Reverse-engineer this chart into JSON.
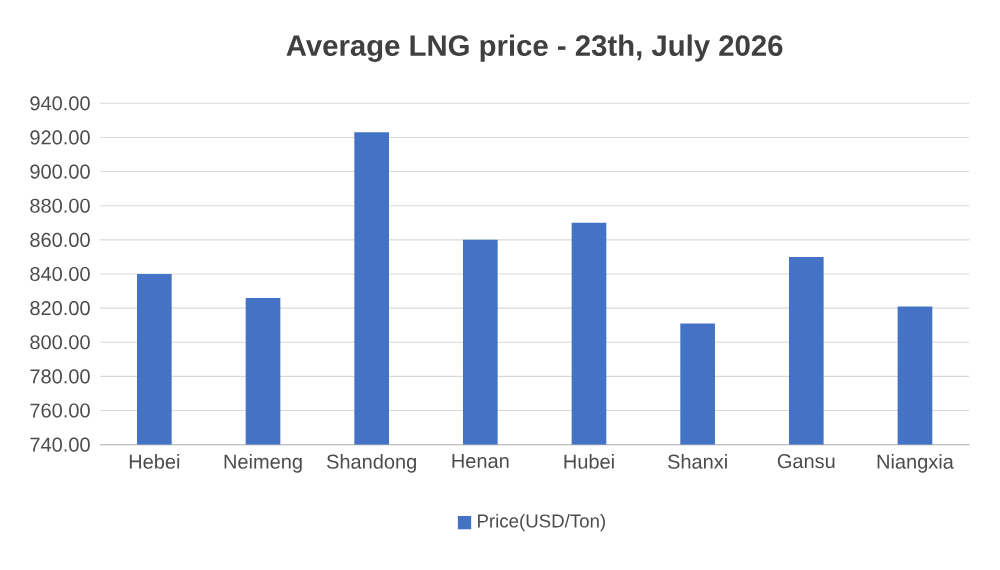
{
  "chart_data": {
    "type": "bar",
    "title": "Average LNG price - 23th, July 2026",
    "categories": [
      "Hebei",
      "Neimeng",
      "Shandong",
      "Henan",
      "Hubei",
      "Shanxi",
      "Gansu",
      "Niangxia"
    ],
    "series": [
      {
        "name": "Price(USD/Ton)",
        "color": "#4472c4",
        "values": [
          840,
          826,
          923,
          860,
          870,
          811,
          850,
          821
        ]
      }
    ],
    "ylim": [
      740,
      940
    ],
    "yticks": [
      {
        "value": 740,
        "label": "740.00"
      },
      {
        "value": 760,
        "label": "760.00"
      },
      {
        "value": 780,
        "label": "780.00"
      },
      {
        "value": 800,
        "label": "800.00"
      },
      {
        "value": 820,
        "label": "820.00"
      },
      {
        "value": 840,
        "label": "840.00"
      },
      {
        "value": 860,
        "label": "860.00"
      },
      {
        "value": 880,
        "label": "880.00"
      },
      {
        "value": 900,
        "label": "900.00"
      },
      {
        "value": 920,
        "label": "920.00"
      },
      {
        "value": 940,
        "label": "940.00"
      }
    ],
    "grid": "y",
    "legend": "bottom"
  }
}
